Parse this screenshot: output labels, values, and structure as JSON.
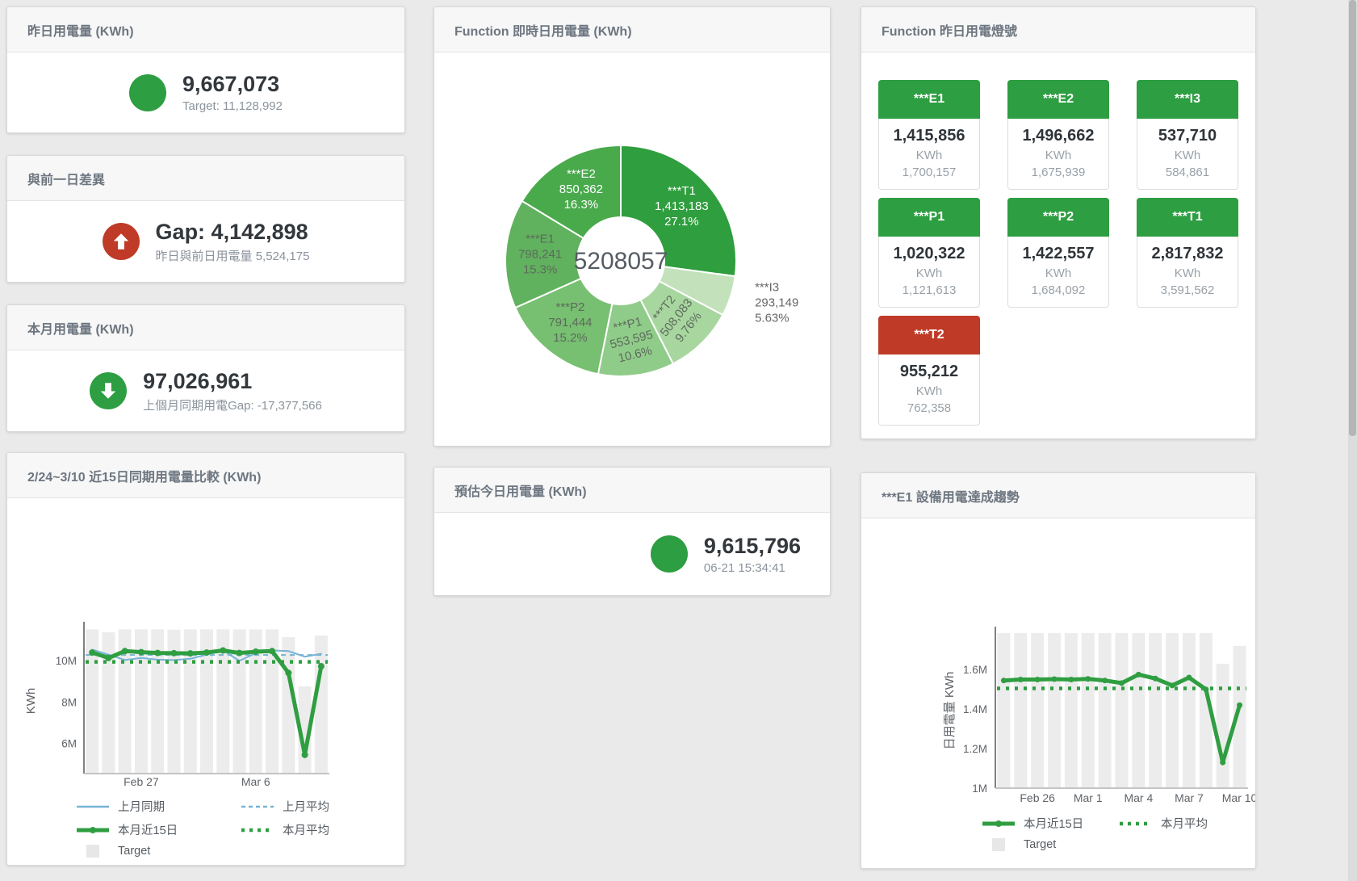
{
  "panels": {
    "yesterday": {
      "title": "昨日用電量 (KWh)",
      "value": "9,667,073",
      "subtext": "Target: 11,128,992",
      "status_color": "#2d9e41"
    },
    "gap": {
      "title": "與前一日差異",
      "value": "Gap: 4,142,898",
      "subtext": "昨日與前日用電量 5,524,175",
      "status_color": "#bf3b27",
      "direction": "up"
    },
    "month": {
      "title": "本月用電量 (KWh)",
      "value": "97,026,961",
      "subtext": "上個月同期用電Gap: -17,377,566",
      "status_color": "#2d9e41",
      "direction": "down"
    },
    "today": {
      "title": "預估今日用電量 (KWh)",
      "value": "9,615,796",
      "subtext": "06-21 15:34:41",
      "status_color": "#2d9e41"
    },
    "donut": {
      "title": "Function 即時日用電量 (KWh)"
    },
    "lights": {
      "title": "Function 昨日用電燈號",
      "tiles": [
        {
          "label": "***E1",
          "value": "1,415,856",
          "unit": "KWh",
          "sub": "1,700,157",
          "color": "#2d9e41"
        },
        {
          "label": "***E2",
          "value": "1,496,662",
          "unit": "KWh",
          "sub": "1,675,939",
          "color": "#2d9e41"
        },
        {
          "label": "***I3",
          "value": "537,710",
          "unit": "KWh",
          "sub": "584,861",
          "color": "#2d9e41"
        },
        {
          "label": "***P1",
          "value": "1,020,322",
          "unit": "KWh",
          "sub": "1,121,613",
          "color": "#2d9e41"
        },
        {
          "label": "***P2",
          "value": "1,422,557",
          "unit": "KWh",
          "sub": "1,684,092",
          "color": "#2d9e41"
        },
        {
          "label": "***T1",
          "value": "2,817,832",
          "unit": "KWh",
          "sub": "3,591,562",
          "color": "#2d9e41"
        },
        {
          "label": "***T2",
          "value": "955,212",
          "unit": "KWh",
          "sub": "762,358",
          "color": "#bf3b27"
        }
      ]
    },
    "compare": {
      "title": "2/24~3/10 近15日同期用電量比較 (KWh)"
    },
    "trend": {
      "title": "***E1 設備用電達成趨勢"
    }
  },
  "chart_data": [
    {
      "type": "pie",
      "title": "Function 即時日用電量 (KWh)",
      "center_label": "5208057",
      "series": [
        {
          "name": "***T1",
          "value": 1413183,
          "value_label": "1,413,183",
          "pct": "27.1%",
          "color": "#2f9e3e"
        },
        {
          "name": "***I3",
          "value": 293149,
          "value_label": "293,149",
          "pct": "5.63%",
          "color": "#c3e2bb"
        },
        {
          "name": "***T2",
          "value": 508083,
          "value_label": "508,083",
          "pct": "9.76%",
          "color": "#a8d69f"
        },
        {
          "name": "***P1",
          "value": 553595,
          "value_label": "553,595",
          "pct": "10.6%",
          "color": "#90cc89"
        },
        {
          "name": "***P2",
          "value": 791444,
          "value_label": "791,444",
          "pct": "15.2%",
          "color": "#77bf71"
        },
        {
          "name": "***E1",
          "value": 798241,
          "value_label": "798,241",
          "pct": "15.3%",
          "color": "#61b25e"
        },
        {
          "name": "***E2",
          "value": 850362,
          "value_label": "850,362",
          "pct": "16.3%",
          "color": "#49aa4c"
        }
      ]
    },
    {
      "type": "line",
      "title": "2/24~3/10 近15日同期用電量比較 (KWh)",
      "ylabel": "KWh",
      "ylim": [
        4.55,
        11.55
      ],
      "yticks": [
        {
          "label": "6M",
          "value": 6
        },
        {
          "label": "8M",
          "value": 8
        },
        {
          "label": "10M",
          "value": 10
        }
      ],
      "xticks": [
        {
          "label": "Feb 27",
          "index": 3
        },
        {
          "label": "Mar 6",
          "index": 10
        }
      ],
      "grid": false,
      "legend_position": "bottom",
      "series": [
        {
          "name": "Target",
          "kind": "bar",
          "color": "#ececec",
          "values": [
            11.5,
            11.35,
            11.5,
            11.5,
            11.5,
            11.48,
            11.5,
            11.5,
            11.5,
            11.5,
            11.5,
            11.5,
            11.12,
            8.75,
            11.2
          ]
        },
        {
          "name": "上月同期",
          "kind": "line",
          "style": "solid",
          "width": 2,
          "color": "#77b3d4",
          "values": [
            10.52,
            10.28,
            10.02,
            10.12,
            10.04,
            10.02,
            10.08,
            10.28,
            10.48,
            9.98,
            10.35,
            10.48,
            10.45,
            10.18,
            10.32
          ]
        },
        {
          "name": "上月平均",
          "kind": "line",
          "style": "dashed",
          "width": 2,
          "color": "#77b3d4",
          "const": 10.26
        },
        {
          "name": "本月近15日",
          "kind": "line",
          "style": "solid",
          "width": 5,
          "marker": 4,
          "color": "#2f9e41",
          "values": [
            10.38,
            10.12,
            10.45,
            10.4,
            10.36,
            10.35,
            10.34,
            10.38,
            10.48,
            10.36,
            10.42,
            10.45,
            9.4,
            5.45,
            9.72
          ]
        },
        {
          "name": "本月平均",
          "kind": "line",
          "style": "dotted",
          "width": 4.5,
          "color": "#2f9e41",
          "const": 9.93
        }
      ],
      "legend": [
        {
          "label": "上月同期",
          "swatch": "line",
          "color": "#77b3d4"
        },
        {
          "label": "上月平均",
          "swatch": "dashed",
          "color": "#77b3d4"
        },
        {
          "label": "本月近15日",
          "swatch": "thick",
          "color": "#2f9e41"
        },
        {
          "label": "本月平均",
          "swatch": "dotted",
          "color": "#2f9e41"
        },
        {
          "label": "Target",
          "swatch": "box",
          "color": "#e7e7e7"
        }
      ]
    },
    {
      "type": "line",
      "title": "***E1 設備用電達成趨勢",
      "ylabel": "日用電量 KWh",
      "ylim": [
        1.0,
        1.785
      ],
      "yticks": [
        {
          "label": "1M",
          "value": 1
        },
        {
          "label": "1.2M",
          "value": 1.2
        },
        {
          "label": "1.4M",
          "value": 1.4
        },
        {
          "label": "1.6M",
          "value": 1.6
        }
      ],
      "xticks": [
        {
          "label": "Feb 26",
          "index": 2
        },
        {
          "label": "Mar 1",
          "index": 5
        },
        {
          "label": "Mar 4",
          "index": 8
        },
        {
          "label": "Mar 7",
          "index": 11
        },
        {
          "label": "Mar 10",
          "index": 14
        }
      ],
      "grid": false,
      "legend_position": "bottom",
      "series": [
        {
          "name": "Target",
          "kind": "bar",
          "color": "#ececec",
          "values": [
            1.79,
            1.79,
            1.79,
            1.79,
            1.79,
            1.79,
            1.79,
            1.79,
            1.79,
            1.79,
            1.79,
            1.79,
            1.79,
            1.63,
            1.72
          ]
        },
        {
          "name": "本月近15日",
          "kind": "line",
          "style": "solid",
          "width": 5,
          "marker": 3.5,
          "color": "#2f9e41",
          "values": [
            1.545,
            1.55,
            1.55,
            1.552,
            1.55,
            1.553,
            1.545,
            1.532,
            1.575,
            1.555,
            1.52,
            1.56,
            1.5,
            1.13,
            1.42
          ]
        },
        {
          "name": "本月平均",
          "kind": "line",
          "style": "dotted",
          "width": 4.5,
          "color": "#2f9e41",
          "const": 1.505
        }
      ],
      "legend": [
        {
          "label": "本月近15日",
          "swatch": "thick",
          "color": "#2f9e41"
        },
        {
          "label": "本月平均",
          "swatch": "dotted",
          "color": "#2f9e41"
        },
        {
          "label": "Target",
          "swatch": "box",
          "color": "#e7e7e7"
        }
      ]
    }
  ]
}
